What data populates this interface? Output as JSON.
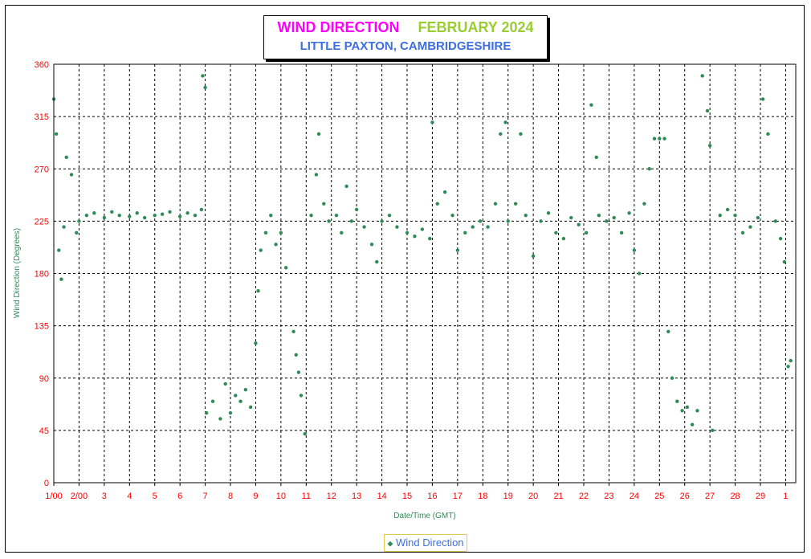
{
  "title": {
    "wind": "WIND DIRECTION",
    "month": "FEBRUARY  2024",
    "location": "LITTLE PAXTON, CAMBRIDGESHIRE"
  },
  "legend": {
    "label": "Wind Direction"
  },
  "colors": {
    "series": "#2e8b57",
    "ticks": "#ff0000",
    "title_wind": "#ff00ff",
    "title_month": "#9acd32",
    "subtitle": "#3d6fe0"
  },
  "chart_data": {
    "type": "scatter",
    "xlabel": "Date/Time (GMT)",
    "ylabel": "Wind Direction (Degrees)",
    "ylim": [
      0,
      360
    ],
    "yticks": [
      0,
      45,
      90,
      135,
      180,
      225,
      270,
      315,
      360
    ],
    "xticks": [
      "1/00",
      "2/00",
      "3",
      "4",
      "5",
      "6",
      "7",
      "8",
      "9",
      "10",
      "11",
      "12",
      "13",
      "14",
      "15",
      "16",
      "17",
      "18",
      "19",
      "20",
      "21",
      "22",
      "23",
      "24",
      "25",
      "26",
      "27",
      "28",
      "29",
      "1"
    ],
    "grid": true,
    "legend_position": "bottom-center",
    "series": [
      {
        "name": "Wind Direction",
        "points": [
          [
            1.0,
            330
          ],
          [
            1.1,
            300
          ],
          [
            1.2,
            200
          ],
          [
            1.3,
            175
          ],
          [
            1.4,
            220
          ],
          [
            1.5,
            280
          ],
          [
            1.7,
            265
          ],
          [
            1.9,
            215
          ],
          [
            2.0,
            225
          ],
          [
            2.3,
            230
          ],
          [
            2.6,
            232
          ],
          [
            3.0,
            228
          ],
          [
            3.3,
            233
          ],
          [
            3.6,
            230
          ],
          [
            4.0,
            229
          ],
          [
            4.3,
            232
          ],
          [
            4.6,
            228
          ],
          [
            5.0,
            230
          ],
          [
            5.3,
            231
          ],
          [
            5.6,
            233
          ],
          [
            6.0,
            229
          ],
          [
            6.3,
            232
          ],
          [
            6.6,
            230
          ],
          [
            6.85,
            235
          ],
          [
            6.9,
            350
          ],
          [
            7.0,
            340
          ],
          [
            7.05,
            60
          ],
          [
            7.3,
            70
          ],
          [
            7.6,
            55
          ],
          [
            7.8,
            85
          ],
          [
            8.0,
            60
          ],
          [
            8.2,
            75
          ],
          [
            8.4,
            70
          ],
          [
            8.6,
            80
          ],
          [
            8.8,
            65
          ],
          [
            9.0,
            120
          ],
          [
            9.1,
            165
          ],
          [
            9.2,
            200
          ],
          [
            9.4,
            215
          ],
          [
            9.6,
            230
          ],
          [
            9.8,
            205
          ],
          [
            10.0,
            215
          ],
          [
            10.2,
            185
          ],
          [
            10.5,
            130
          ],
          [
            10.6,
            110
          ],
          [
            10.7,
            95
          ],
          [
            10.8,
            75
          ],
          [
            10.95,
            42
          ],
          [
            11.2,
            230
          ],
          [
            11.4,
            265
          ],
          [
            11.5,
            300
          ],
          [
            11.7,
            240
          ],
          [
            11.9,
            225
          ],
          [
            12.2,
            230
          ],
          [
            12.4,
            215
          ],
          [
            12.6,
            255
          ],
          [
            12.8,
            225
          ],
          [
            13.0,
            235
          ],
          [
            13.3,
            220
          ],
          [
            13.6,
            205
          ],
          [
            13.8,
            190
          ],
          [
            14.0,
            225
          ],
          [
            14.3,
            230
          ],
          [
            14.6,
            220
          ],
          [
            15.0,
            215
          ],
          [
            15.3,
            212
          ],
          [
            15.6,
            218
          ],
          [
            15.9,
            210
          ],
          [
            16.0,
            310
          ],
          [
            16.2,
            240
          ],
          [
            16.5,
            250
          ],
          [
            16.8,
            230
          ],
          [
            17.0,
            200
          ],
          [
            17.3,
            215
          ],
          [
            17.6,
            220
          ],
          [
            17.9,
            225
          ],
          [
            18.2,
            220
          ],
          [
            18.5,
            240
          ],
          [
            18.7,
            300
          ],
          [
            18.9,
            310
          ],
          [
            19.0,
            225
          ],
          [
            19.3,
            240
          ],
          [
            19.5,
            300
          ],
          [
            19.7,
            230
          ],
          [
            20.0,
            195
          ],
          [
            20.3,
            225
          ],
          [
            20.6,
            232
          ],
          [
            20.9,
            215
          ],
          [
            21.2,
            210
          ],
          [
            21.5,
            228
          ],
          [
            21.8,
            222
          ],
          [
            22.1,
            215
          ],
          [
            22.3,
            325
          ],
          [
            22.5,
            280
          ],
          [
            22.6,
            230
          ],
          [
            22.9,
            225
          ],
          [
            23.2,
            228
          ],
          [
            23.5,
            215
          ],
          [
            23.8,
            232
          ],
          [
            24.0,
            200
          ],
          [
            24.2,
            180
          ],
          [
            24.4,
            240
          ],
          [
            24.6,
            270
          ],
          [
            24.8,
            296
          ],
          [
            25.0,
            296
          ],
          [
            25.2,
            296
          ],
          [
            25.35,
            130
          ],
          [
            25.5,
            90
          ],
          [
            25.7,
            70
          ],
          [
            25.9,
            62
          ],
          [
            26.1,
            65
          ],
          [
            26.3,
            50
          ],
          [
            26.5,
            62
          ],
          [
            26.7,
            350
          ],
          [
            26.9,
            320
          ],
          [
            27.0,
            290
          ],
          [
            27.1,
            45
          ],
          [
            27.4,
            230
          ],
          [
            27.7,
            235
          ],
          [
            28.0,
            230
          ],
          [
            28.3,
            215
          ],
          [
            28.6,
            220
          ],
          [
            28.9,
            228
          ],
          [
            29.1,
            330
          ],
          [
            29.3,
            300
          ],
          [
            29.6,
            225
          ],
          [
            29.8,
            210
          ],
          [
            29.95,
            190
          ],
          [
            30.1,
            100
          ],
          [
            30.2,
            105
          ]
        ]
      }
    ]
  }
}
